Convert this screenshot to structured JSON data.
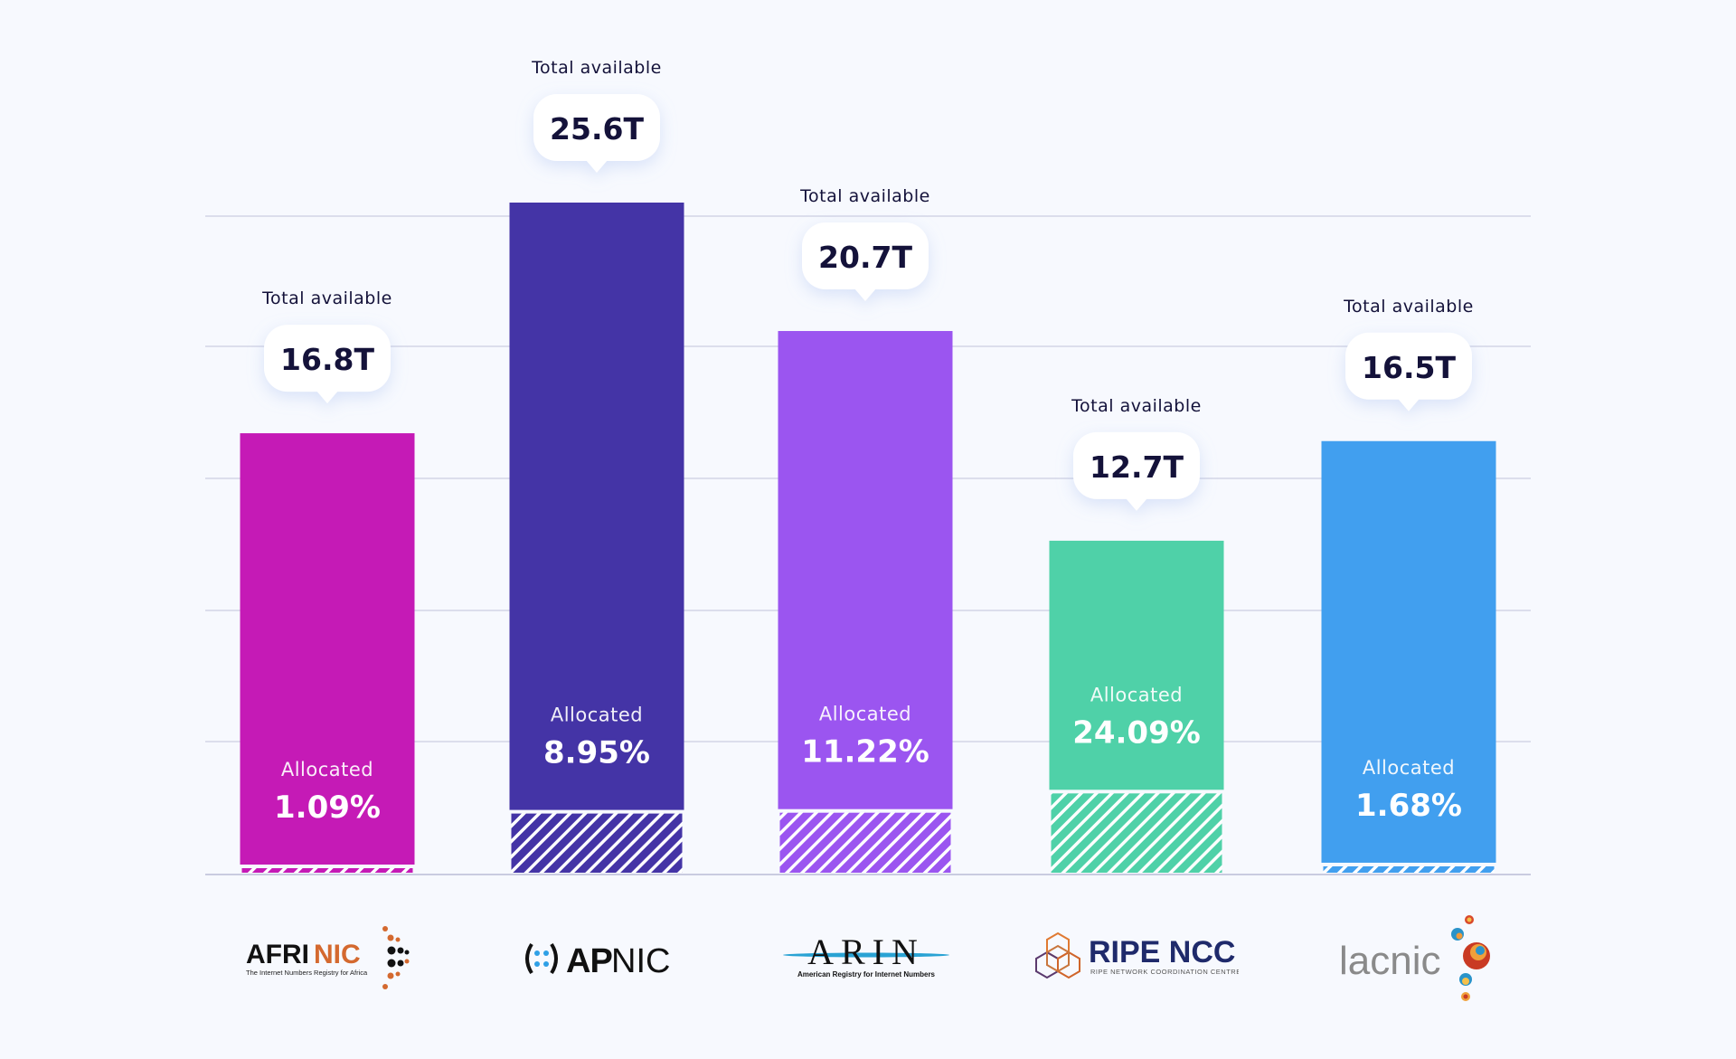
{
  "chart_data": {
    "type": "bar",
    "title": "",
    "xlabel": "",
    "ylabel": "",
    "ylim": [
      0,
      25.6
    ],
    "grid": true,
    "unit": "T",
    "total_label": "Total available",
    "allocated_label": "Allocated",
    "categories": [
      "AFRINIC",
      "APNIC",
      "ARIN",
      "RIPE NCC",
      "LACNIC"
    ],
    "series": [
      {
        "name": "Total available",
        "values": [
          16.8,
          25.6,
          20.7,
          12.7,
          16.5
        ],
        "labels": [
          "16.8T",
          "25.6T",
          "20.7T",
          "12.7T",
          "16.5T"
        ]
      },
      {
        "name": "Allocated",
        "values": [
          1.09,
          8.95,
          11.22,
          24.09,
          1.68
        ],
        "labels": [
          "1.09%",
          "8.95%",
          "11.22%",
          "24.09%",
          "1.68%"
        ],
        "unit": "%"
      }
    ],
    "colors": [
      "#c51ab6",
      "#4434a6",
      "#9b55f0",
      "#4fd1a8",
      "#419fef"
    ]
  },
  "logos": [
    {
      "name": "AFRINIC",
      "wordmark_a": "AFRI",
      "wordmark_b": "NIC",
      "tagline": "The Internet Numbers Registry for Africa"
    },
    {
      "name": "APNIC",
      "wordmark_a": "AP",
      "wordmark_b": "NIC"
    },
    {
      "name": "ARIN",
      "wordmark": "ARIN",
      "tagline": "American Registry for Internet Numbers"
    },
    {
      "name": "RIPE NCC",
      "wordmark": "RIPE NCC",
      "tagline": "RIPE NETWORK COORDINATION CENTRE"
    },
    {
      "name": "LACNIC",
      "wordmark": "lacnic"
    }
  ]
}
